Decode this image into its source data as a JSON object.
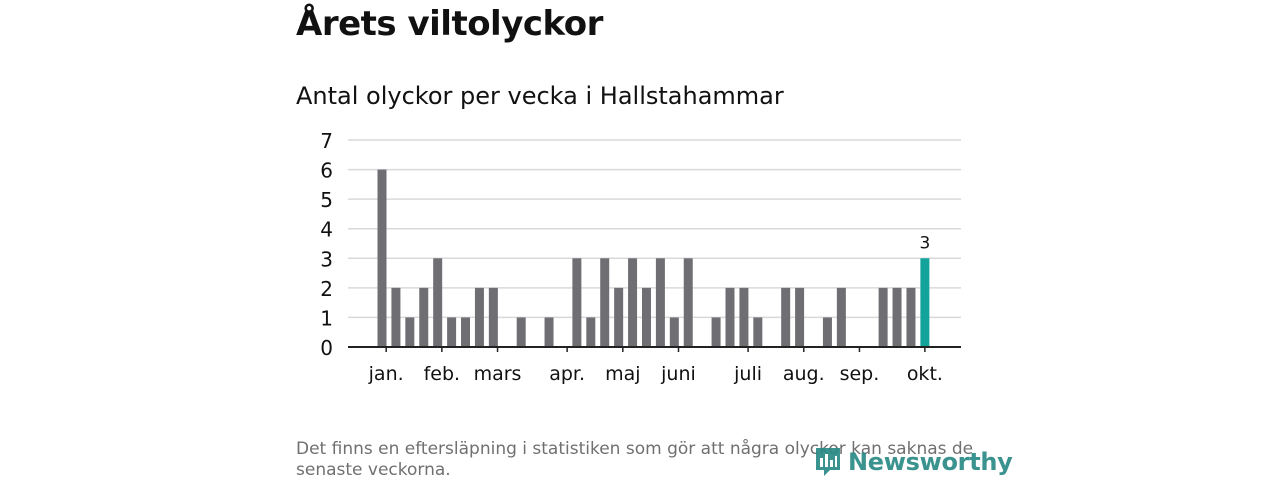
{
  "page": {
    "title": "Årets viltolyckor",
    "footnote": "Det finns en eftersläpning i statistiken som gör att några olyckor kan saknas de senaste veckorna.",
    "brand": {
      "name": "Newsworthy",
      "color": "#2a8a85",
      "icon": "newsworthy-logo-icon"
    }
  },
  "chart_data": {
    "type": "bar",
    "title": "Antal olyckor per vecka i Hallstahammar",
    "xlabel": "",
    "ylabel": "",
    "ylim": [
      0,
      7
    ],
    "yticks": [
      0,
      1,
      2,
      3,
      4,
      5,
      6,
      7
    ],
    "grid": true,
    "bar_color": "#6f6e73",
    "highlight_color": "#12a39a",
    "weeks": [
      1,
      2,
      3,
      4,
      5,
      6,
      7,
      8,
      9,
      10,
      11,
      12,
      13,
      14,
      15,
      16,
      17,
      18,
      19,
      20,
      21,
      22,
      23,
      24,
      25,
      26,
      27,
      28,
      29,
      30,
      31,
      32,
      33,
      34,
      35,
      36,
      37,
      38,
      39,
      40
    ],
    "values": [
      6,
      2,
      1,
      2,
      3,
      1,
      1,
      2,
      2,
      0,
      1,
      0,
      1,
      0,
      3,
      1,
      3,
      2,
      3,
      2,
      3,
      1,
      3,
      0,
      1,
      2,
      2,
      1,
      0,
      2,
      2,
      0,
      1,
      2,
      0,
      0,
      2,
      2,
      2,
      3
    ],
    "highlight_index": 39,
    "highlight_label": "3",
    "month_labels": [
      {
        "label": "jan.",
        "week": 1.3
      },
      {
        "label": "feb.",
        "week": 5.3
      },
      {
        "label": "mars",
        "week": 9.3
      },
      {
        "label": "apr.",
        "week": 14.3
      },
      {
        "label": "maj",
        "week": 18.3
      },
      {
        "label": "juni",
        "week": 22.3
      },
      {
        "label": "juli",
        "week": 27.3
      },
      {
        "label": "aug.",
        "week": 31.3
      },
      {
        "label": "sep.",
        "week": 35.3
      },
      {
        "label": "okt.",
        "week": 40.0
      }
    ]
  }
}
